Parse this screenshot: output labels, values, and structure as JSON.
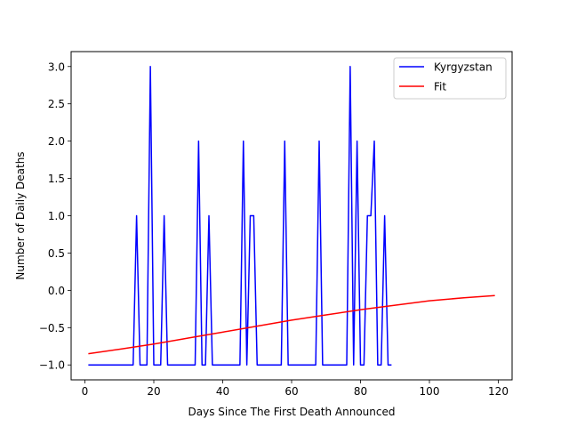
{
  "chart_data": {
    "type": "line",
    "xlabel": "Days Since The First Death Announced",
    "ylabel": "Number of Daily Deaths",
    "xlim": [
      -4,
      124
    ],
    "ylim": [
      -1.2,
      3.2
    ],
    "xticks": [
      0,
      20,
      40,
      60,
      80,
      100,
      120
    ],
    "xtick_labels": [
      "0",
      "20",
      "40",
      "60",
      "80",
      "100",
      "120"
    ],
    "yticks": [
      -1.0,
      -0.5,
      0.0,
      0.5,
      1.0,
      1.5,
      2.0,
      2.5,
      3.0
    ],
    "ytick_labels": [
      "−1.0",
      "−0.5",
      "0.0",
      "0.5",
      "1.0",
      "1.5",
      "2.0",
      "2.5",
      "3.0"
    ],
    "grid": false,
    "legend_position": "top-right",
    "series": [
      {
        "name": "Kyrgyzstan",
        "color": "#0000ff",
        "x": [
          1,
          2,
          3,
          4,
          5,
          6,
          7,
          8,
          9,
          10,
          11,
          12,
          13,
          14,
          15,
          16,
          17,
          18,
          19,
          20,
          21,
          22,
          23,
          24,
          25,
          26,
          27,
          28,
          29,
          30,
          31,
          32,
          33,
          34,
          35,
          36,
          37,
          38,
          39,
          40,
          41,
          42,
          43,
          44,
          45,
          46,
          47,
          48,
          49,
          50,
          51,
          52,
          53,
          54,
          55,
          56,
          57,
          58,
          59,
          60,
          61,
          62,
          63,
          64,
          65,
          66,
          67,
          68,
          69,
          70,
          71,
          72,
          73,
          74,
          75,
          76,
          77,
          78,
          79,
          80,
          81,
          82,
          83,
          84,
          85,
          86,
          87,
          88,
          89
        ],
        "y": [
          -1,
          -1,
          -1,
          -1,
          -1,
          -1,
          -1,
          -1,
          -1,
          -1,
          -1,
          -1,
          -1,
          -1,
          1,
          -1,
          -1,
          -1,
          3,
          -1,
          -1,
          -1,
          1,
          -1,
          -1,
          -1,
          -1,
          -1,
          -1,
          -1,
          -1,
          -1,
          2,
          -1,
          -1,
          1,
          -1,
          -1,
          -1,
          -1,
          -1,
          -1,
          -1,
          -1,
          -1,
          2,
          -1,
          1,
          1,
          -1,
          -1,
          -1,
          -1,
          -1,
          -1,
          -1,
          -1,
          2,
          -1,
          -1,
          -1,
          -1,
          -1,
          -1,
          -1,
          -1,
          -1,
          2,
          -1,
          -1,
          -1,
          -1,
          -1,
          -1,
          -1,
          -1,
          3,
          -1,
          2,
          -1,
          -1,
          1,
          1,
          2,
          -1,
          -1,
          1,
          -1,
          -1
        ]
      },
      {
        "name": "Fit",
        "color": "#ff0000",
        "x": [
          1,
          10,
          20,
          30,
          40,
          50,
          60,
          70,
          80,
          90,
          100,
          110,
          119
        ],
        "y": [
          -0.85,
          -0.79,
          -0.72,
          -0.64,
          -0.56,
          -0.48,
          -0.4,
          -0.33,
          -0.26,
          -0.2,
          -0.14,
          -0.1,
          -0.07
        ]
      }
    ]
  }
}
